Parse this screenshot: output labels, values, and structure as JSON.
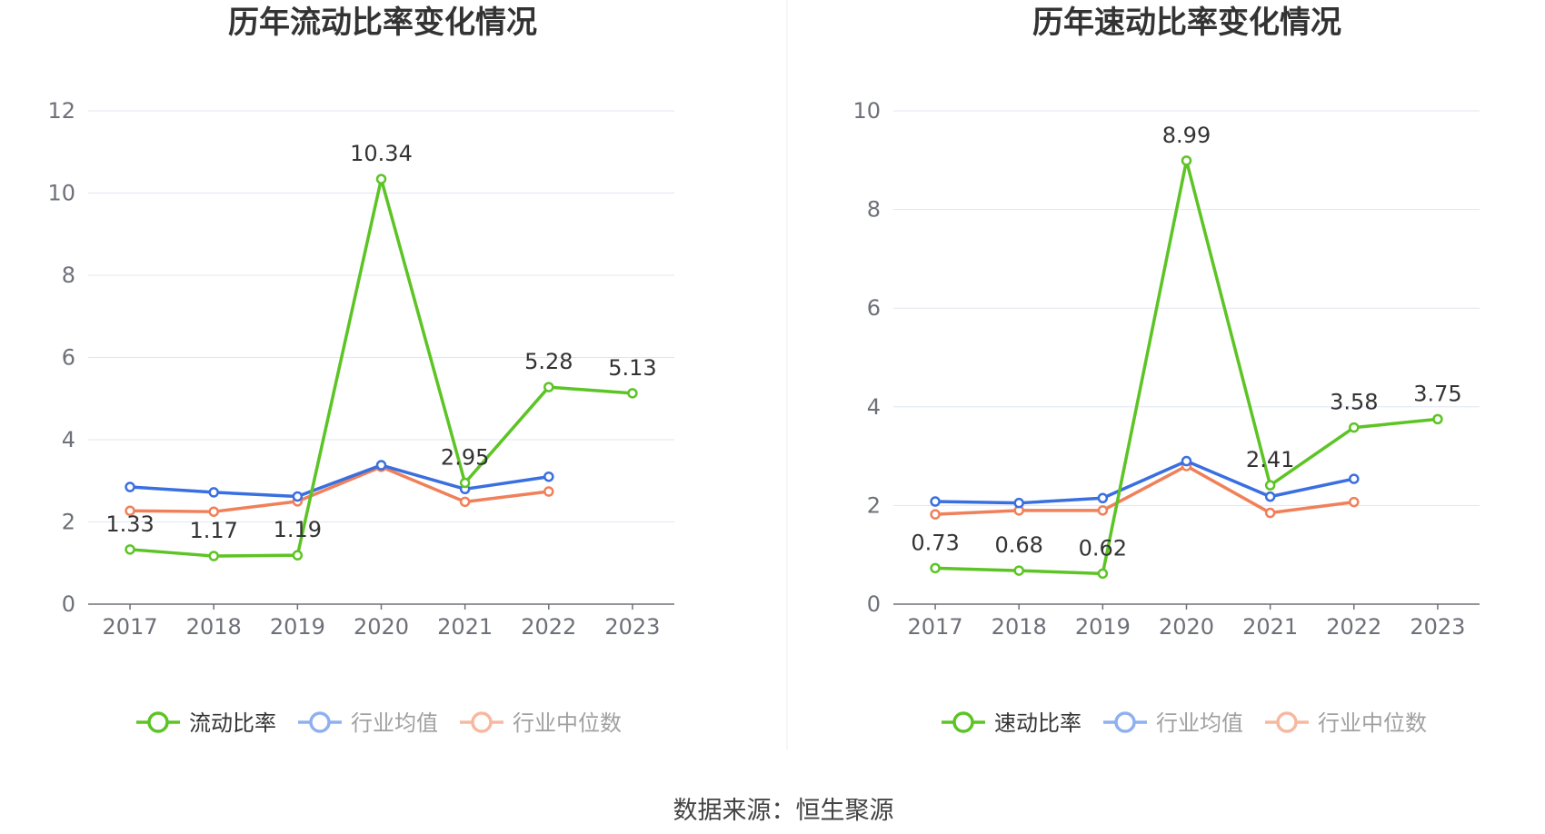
{
  "source": "数据来源：恒生聚源",
  "chart_data": [
    {
      "type": "line",
      "title": "历年流动比率变化情况",
      "x": [
        "2017",
        "2018",
        "2019",
        "2020",
        "2021",
        "2022",
        "2023"
      ],
      "ylim": [
        0,
        12
      ],
      "yticks": [
        "0",
        "2",
        "4",
        "6",
        "8",
        "10",
        "12"
      ],
      "grid": true,
      "legend_position": "bottom",
      "series": [
        {
          "name": "流动比率",
          "color": "#5cc424",
          "values": [
            1.33,
            1.17,
            1.19,
            10.34,
            2.95,
            5.28,
            5.13
          ],
          "labels": [
            "1.33",
            "1.17",
            "1.19",
            "10.34",
            "2.95",
            "5.28",
            "5.13"
          ]
        },
        {
          "name": "行业均值",
          "color": "#3a6fe0",
          "values": [
            2.85,
            2.72,
            2.62,
            3.38,
            2.8,
            3.1,
            null
          ]
        },
        {
          "name": "行业中位数",
          "color": "#f0805a",
          "values": [
            2.27,
            2.25,
            2.5,
            3.34,
            2.49,
            2.74,
            null
          ]
        }
      ]
    },
    {
      "type": "line",
      "title": "历年速动比率变化情况",
      "x": [
        "2017",
        "2018",
        "2019",
        "2020",
        "2021",
        "2022",
        "2023"
      ],
      "ylim": [
        0,
        10
      ],
      "yticks": [
        "0",
        "2",
        "4",
        "6",
        "8",
        "10"
      ],
      "grid": true,
      "legend_position": "bottom",
      "series": [
        {
          "name": "速动比率",
          "color": "#5cc424",
          "values": [
            0.73,
            0.68,
            0.62,
            8.99,
            2.41,
            3.58,
            3.75
          ],
          "labels": [
            "0.73",
            "0.68",
            "0.62",
            "8.99",
            "2.41",
            "3.58",
            "3.75"
          ]
        },
        {
          "name": "行业均值",
          "color": "#3a6fe0",
          "values": [
            2.08,
            2.05,
            2.15,
            2.9,
            2.18,
            2.54,
            null
          ]
        },
        {
          "name": "行业中位数",
          "color": "#f0805a",
          "values": [
            1.82,
            1.9,
            1.9,
            2.8,
            1.85,
            2.07,
            null
          ]
        }
      ]
    }
  ]
}
